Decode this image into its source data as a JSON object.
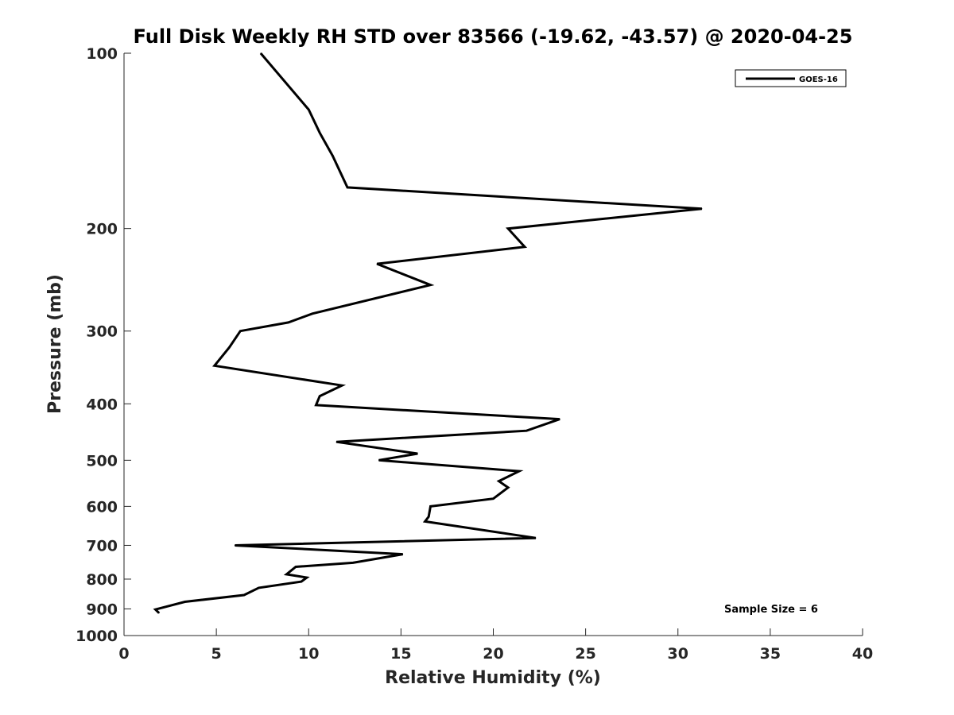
{
  "chart_data": {
    "type": "line",
    "title": "Full Disk Weekly RH STD over 83566 (-19.62, -43.57) @ 2020-04-25",
    "xlabel": "Relative Humidity (%)",
    "ylabel": "Pressure (mb)",
    "xlim": [
      0,
      40
    ],
    "ylim": [
      100,
      1000
    ],
    "yscale": "log",
    "reverse_y": true,
    "x_ticks": [
      0,
      5,
      10,
      15,
      20,
      25,
      30,
      35,
      40
    ],
    "y_ticks": [
      100,
      200,
      300,
      400,
      500,
      600,
      700,
      800,
      900,
      1000
    ],
    "grid": false,
    "legend": {
      "location": "top-right",
      "entries": [
        "GOES-16"
      ]
    },
    "annotation": "Sample Size = 6",
    "series": [
      {
        "name": "GOES-16",
        "color": "#000000",
        "points": [
          [
            7.4,
            100
          ],
          [
            10.0,
            125
          ],
          [
            10.6,
            137
          ],
          [
            11.3,
            150
          ],
          [
            12.1,
            170
          ],
          [
            31.3,
            185
          ],
          [
            20.8,
            200
          ],
          [
            21.7,
            215
          ],
          [
            13.7,
            230
          ],
          [
            16.6,
            250
          ],
          [
            10.2,
            280
          ],
          [
            8.9,
            290
          ],
          [
            6.3,
            300
          ],
          [
            5.7,
            320
          ],
          [
            4.9,
            344
          ],
          [
            11.8,
            372
          ],
          [
            10.6,
            388
          ],
          [
            10.4,
            402
          ],
          [
            23.6,
            425
          ],
          [
            21.8,
            445
          ],
          [
            11.5,
            465
          ],
          [
            15.9,
            487
          ],
          [
            13.8,
            500
          ],
          [
            21.4,
            522
          ],
          [
            20.3,
            543
          ],
          [
            20.8,
            557
          ],
          [
            20.0,
            582
          ],
          [
            16.6,
            600
          ],
          [
            16.5,
            625
          ],
          [
            16.3,
            637
          ],
          [
            22.3,
            680
          ],
          [
            6.0,
            700
          ],
          [
            15.1,
            725
          ],
          [
            12.4,
            750
          ],
          [
            9.3,
            762
          ],
          [
            8.8,
            785
          ],
          [
            9.9,
            795
          ],
          [
            9.6,
            808
          ],
          [
            7.3,
            828
          ],
          [
            6.5,
            852
          ],
          [
            3.3,
            875
          ],
          [
            1.7,
            902
          ],
          [
            1.9,
            915
          ]
        ]
      }
    ]
  }
}
